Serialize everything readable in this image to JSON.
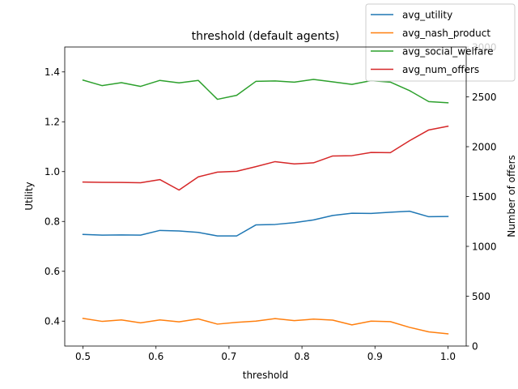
{
  "chart_data": {
    "type": "line",
    "title": "threshold (default agents)",
    "xlabel": "threshold",
    "ylabel": "Utility",
    "y2label": "Number of offers",
    "xlim": [
      0.475,
      1.025
    ],
    "ylim": [
      0.3,
      1.5
    ],
    "y2lim": [
      0,
      3000
    ],
    "x_ticks": [
      0.5,
      0.6,
      0.7,
      0.8,
      0.9,
      1.0
    ],
    "x_tick_labels": [
      "0.5",
      "0.6",
      "0.7",
      "0.8",
      "0.9",
      "1.0"
    ],
    "y_ticks": [
      0.4,
      0.6,
      0.8,
      1.0,
      1.2,
      1.4
    ],
    "y_tick_labels": [
      "0.4",
      "0.6",
      "0.8",
      "1.0",
      "1.2",
      "1.4"
    ],
    "y2_ticks": [
      0,
      500,
      1000,
      1500,
      2000,
      2500,
      3000
    ],
    "y2_tick_labels": [
      "0",
      "500",
      "1000",
      "1500",
      "2000",
      "2500",
      "3000"
    ],
    "legend_position": "top-right",
    "x": [
      0.5,
      0.5263,
      0.5526,
      0.5789,
      0.6053,
      0.6316,
      0.6579,
      0.6842,
      0.7105,
      0.7368,
      0.7632,
      0.7895,
      0.8158,
      0.8421,
      0.8684,
      0.8947,
      0.9211,
      0.9474,
      0.9737,
      1.0
    ],
    "series": [
      {
        "name": "avg_utility",
        "axis": "left",
        "color": "#1f77b4",
        "values": [
          0.748,
          0.745,
          0.746,
          0.745,
          0.764,
          0.762,
          0.756,
          0.742,
          0.742,
          0.786,
          0.788,
          0.795,
          0.806,
          0.824,
          0.833,
          0.832,
          0.837,
          0.841,
          0.819,
          0.82
        ]
      },
      {
        "name": "avg_nash_product",
        "axis": "left",
        "color": "#ff7f0e",
        "values": [
          0.411,
          0.399,
          0.405,
          0.393,
          0.405,
          0.397,
          0.409,
          0.388,
          0.395,
          0.4,
          0.41,
          0.402,
          0.408,
          0.404,
          0.385,
          0.4,
          0.398,
          0.375,
          0.357,
          0.349
        ]
      },
      {
        "name": "avg_social_welfare",
        "axis": "left",
        "color": "#2ca02c",
        "values": [
          1.367,
          1.345,
          1.357,
          1.342,
          1.366,
          1.356,
          1.366,
          1.29,
          1.306,
          1.362,
          1.364,
          1.359,
          1.37,
          1.36,
          1.35,
          1.365,
          1.359,
          1.325,
          1.281,
          1.276
        ]
      },
      {
        "name": "avg_num_offers",
        "axis": "right",
        "color": "#d62728",
        "values": [
          1645,
          1642,
          1641,
          1638,
          1670,
          1565,
          1697,
          1745,
          1753,
          1800,
          1850,
          1827,
          1838,
          1907,
          1910,
          1942,
          1940,
          2060,
          2168,
          2205
        ]
      }
    ]
  }
}
